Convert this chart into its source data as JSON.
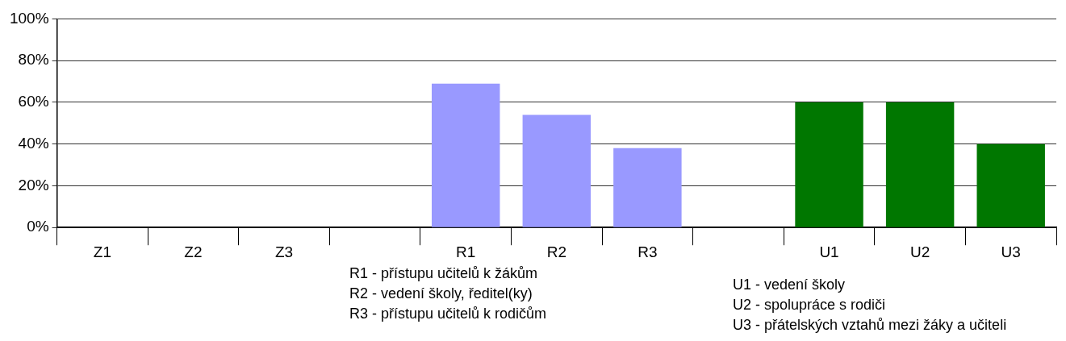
{
  "chart_data": {
    "type": "bar",
    "categories": [
      "Z1",
      "Z2",
      "Z3",
      null,
      "R1",
      "R2",
      "R3",
      null,
      "U1",
      "U2",
      "U3"
    ],
    "values": [
      0,
      0,
      0,
      null,
      69,
      54,
      38,
      null,
      60,
      60,
      40
    ],
    "colors": [
      "#9999ff",
      "#9999ff",
      "#9999ff",
      null,
      "#9999ff",
      "#9999ff",
      "#9999ff",
      null,
      "#007700",
      "#007700",
      "#007700"
    ],
    "ylim": [
      0,
      100
    ],
    "yticks": [
      {
        "value": 0,
        "label": "0%"
      },
      {
        "value": 20,
        "label": "20%"
      },
      {
        "value": 40,
        "label": "40%"
      },
      {
        "value": 60,
        "label": "60%"
      },
      {
        "value": 80,
        "label": "80%"
      },
      {
        "value": 100,
        "label": "100%"
      }
    ],
    "grid": "y",
    "legend": false,
    "annotations": [
      "R1 - přístupu učitelů k žákům",
      "R2 - vedení školy, ředitel(ky)",
      "R3 - přístupu učitelů k rodičům",
      "U1 - vedení školy",
      "U2 - spolupráce s rodiči",
      "U3 - přátelských vztahů mezi žáky a učiteli"
    ]
  }
}
